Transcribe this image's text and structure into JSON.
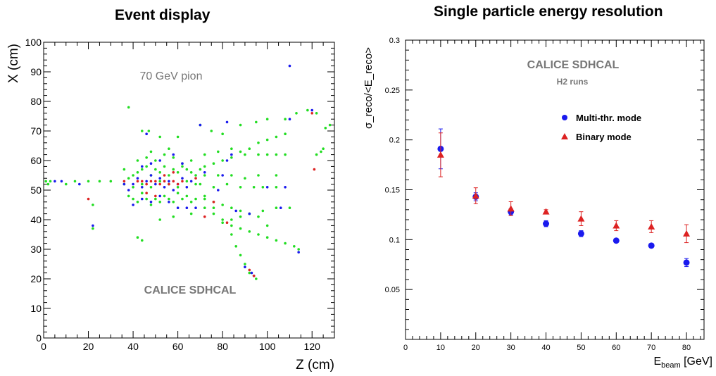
{
  "chart_data": [
    {
      "type": "scatter",
      "title": "Event display",
      "xlabel": "Z (cm)",
      "ylabel": "X (cm)",
      "xlim": [
        0,
        130
      ],
      "ylim": [
        0,
        100
      ],
      "xticks": [
        0,
        20,
        40,
        60,
        80,
        100,
        120
      ],
      "yticks": [
        0,
        10,
        20,
        30,
        40,
        50,
        60,
        70,
        80,
        90,
        100
      ],
      "annotations": [
        "70 GeV pion",
        "CALICE SDHCAL"
      ],
      "colors": {
        "green": "#22dd22",
        "blue": "#1a1aee",
        "red": "#dd2222"
      },
      "series": [
        {
          "color": "green",
          "points": [
            [
              1,
              53
            ],
            [
              2,
              52
            ],
            [
              3,
              53
            ],
            [
              10,
              52
            ],
            [
              14,
              53
            ],
            [
              20,
              53
            ],
            [
              25,
              53
            ],
            [
              30,
              53
            ],
            [
              36,
              52
            ],
            [
              38,
              54
            ],
            [
              40,
              55
            ],
            [
              42,
              56
            ],
            [
              44,
              57
            ],
            [
              46,
              58
            ],
            [
              48,
              55
            ],
            [
              50,
              57
            ],
            [
              52,
              56
            ],
            [
              54,
              58
            ],
            [
              56,
              55
            ],
            [
              58,
              57
            ],
            [
              60,
              56
            ],
            [
              62,
              58
            ],
            [
              64,
              57
            ],
            [
              66,
              56
            ],
            [
              68,
              55
            ],
            [
              70,
              57
            ],
            [
              38,
              48
            ],
            [
              40,
              47
            ],
            [
              42,
              46
            ],
            [
              44,
              49
            ],
            [
              46,
              47
            ],
            [
              48,
              45
            ],
            [
              50,
              47
            ],
            [
              52,
              46
            ],
            [
              54,
              48
            ],
            [
              56,
              47
            ],
            [
              58,
              46
            ],
            [
              60,
              49
            ],
            [
              62,
              47
            ],
            [
              64,
              48
            ],
            [
              66,
              46
            ],
            [
              68,
              47
            ],
            [
              42,
              60
            ],
            [
              46,
              61
            ],
            [
              50,
              60
            ],
            [
              54,
              62
            ],
            [
              58,
              61
            ],
            [
              62,
              59
            ],
            [
              66,
              60
            ],
            [
              48,
              63
            ],
            [
              56,
              64
            ],
            [
              40,
              51
            ],
            [
              44,
              52
            ],
            [
              48,
              51
            ],
            [
              52,
              53
            ],
            [
              56,
              52
            ],
            [
              60,
              51
            ],
            [
              64,
              53
            ],
            [
              68,
              52
            ],
            [
              36,
              57
            ],
            [
              38,
              78
            ],
            [
              44,
              70
            ],
            [
              47,
              70
            ],
            [
              52,
              68
            ],
            [
              60,
              68
            ],
            [
              70,
              72
            ],
            [
              75,
              70
            ],
            [
              80,
              69
            ],
            [
              88,
              72
            ],
            [
              95,
              73
            ],
            [
              100,
              74
            ],
            [
              108,
              74
            ],
            [
              113,
              76
            ],
            [
              118,
              77
            ],
            [
              122,
              76
            ],
            [
              126,
              71
            ],
            [
              128,
              72
            ],
            [
              72,
              58
            ],
            [
              76,
              59
            ],
            [
              80,
              60
            ],
            [
              84,
              61
            ],
            [
              88,
              63
            ],
            [
              92,
              64
            ],
            [
              96,
              66
            ],
            [
              100,
              67
            ],
            [
              104,
              68
            ],
            [
              108,
              69
            ],
            [
              72,
              62
            ],
            [
              78,
              63
            ],
            [
              84,
              64
            ],
            [
              90,
              62
            ],
            [
              96,
              62
            ],
            [
              100,
              62
            ],
            [
              104,
              62
            ],
            [
              108,
              62
            ],
            [
              72,
              55
            ],
            [
              78,
              55
            ],
            [
              84,
              55
            ],
            [
              90,
              54
            ],
            [
              96,
              55
            ],
            [
              104,
              55
            ],
            [
              70,
              52
            ],
            [
              76,
              51
            ],
            [
              82,
              52
            ],
            [
              88,
              51
            ],
            [
              94,
              51
            ],
            [
              98,
              51
            ],
            [
              104,
              51
            ],
            [
              72,
              47
            ],
            [
              76,
              46
            ],
            [
              80,
              45
            ],
            [
              84,
              44
            ],
            [
              88,
              43
            ],
            [
              92,
              42
            ],
            [
              96,
              41
            ],
            [
              72,
              44
            ],
            [
              76,
              42
            ],
            [
              80,
              40
            ],
            [
              84,
              38
            ],
            [
              88,
              37
            ],
            [
              92,
              36
            ],
            [
              96,
              35
            ],
            [
              100,
              34
            ],
            [
              104,
              33
            ],
            [
              108,
              32
            ],
            [
              112,
              31
            ],
            [
              114,
              30
            ],
            [
              72,
              48
            ],
            [
              76,
              44
            ],
            [
              80,
              39
            ],
            [
              84,
              35
            ],
            [
              86,
              31
            ],
            [
              88,
              28
            ],
            [
              90,
              25
            ],
            [
              92,
              22
            ],
            [
              94,
              21
            ],
            [
              95,
              20
            ],
            [
              84,
              40
            ],
            [
              88,
              41
            ],
            [
              92,
              42
            ],
            [
              98,
              43
            ],
            [
              104,
              44
            ],
            [
              110,
              44
            ],
            [
              22,
              37
            ],
            [
              22,
              45
            ],
            [
              42,
              34
            ],
            [
              44,
              33
            ],
            [
              122,
              62
            ],
            [
              124,
              63
            ],
            [
              125,
              64
            ],
            [
              100,
              38
            ],
            [
              52,
              40
            ],
            [
              58,
              41
            ],
            [
              66,
              42
            ]
          ]
        },
        {
          "color": "blue",
          "points": [
            [
              5,
              53
            ],
            [
              8,
              53
            ],
            [
              16,
              52
            ],
            [
              36,
              52
            ],
            [
              38,
              50
            ],
            [
              40,
              52
            ],
            [
              42,
              54
            ],
            [
              44,
              51
            ],
            [
              46,
              53
            ],
            [
              48,
              55
            ],
            [
              50,
              52
            ],
            [
              52,
              54
            ],
            [
              54,
              51
            ],
            [
              56,
              53
            ],
            [
              58,
              50
            ],
            [
              60,
              52
            ],
            [
              62,
              54
            ],
            [
              64,
              51
            ],
            [
              66,
              53
            ],
            [
              40,
              45
            ],
            [
              44,
              47
            ],
            [
              48,
              46
            ],
            [
              52,
              48
            ],
            [
              56,
              46
            ],
            [
              60,
              44
            ],
            [
              64,
              44
            ],
            [
              44,
              58
            ],
            [
              48,
              59
            ],
            [
              52,
              60
            ],
            [
              58,
              62
            ],
            [
              62,
              59
            ],
            [
              46,
              69
            ],
            [
              70,
              72
            ],
            [
              82,
              73
            ],
            [
              110,
              92
            ],
            [
              110,
              74
            ],
            [
              120,
              77
            ],
            [
              114,
              29
            ],
            [
              90,
              24
            ],
            [
              93,
              22
            ],
            [
              94,
              21
            ],
            [
              108,
              51
            ],
            [
              106,
              44
            ],
            [
              100,
              51
            ],
            [
              82,
              60
            ],
            [
              84,
              62
            ],
            [
              86,
              43
            ],
            [
              92,
              42
            ],
            [
              72,
              56
            ],
            [
              80,
              55
            ],
            [
              78,
              50
            ],
            [
              22,
              38
            ],
            [
              68,
              44
            ]
          ]
        },
        {
          "color": "red",
          "points": [
            [
              20,
              47
            ],
            [
              36,
              53
            ],
            [
              42,
              53
            ],
            [
              44,
              53
            ],
            [
              46,
              52
            ],
            [
              48,
              53
            ],
            [
              50,
              53
            ],
            [
              52,
              52
            ],
            [
              54,
              53
            ],
            [
              56,
              52
            ],
            [
              58,
              53
            ],
            [
              60,
              52
            ],
            [
              62,
              53
            ],
            [
              46,
              49
            ],
            [
              50,
              48
            ],
            [
              54,
              55
            ],
            [
              58,
              56
            ],
            [
              72,
              41
            ],
            [
              82,
              39
            ],
            [
              92,
              23
            ],
            [
              94,
              21
            ],
            [
              121,
              57
            ],
            [
              120,
              76
            ],
            [
              76,
              46
            ],
            [
              68,
              54
            ]
          ]
        }
      ]
    },
    {
      "type": "scatter",
      "title": "Single particle energy resolution",
      "xlabel": "E_beam [GeV]",
      "ylabel": "σ_reco/<E_reco>",
      "xlim": [
        0,
        85
      ],
      "ylim": [
        0,
        0.3
      ],
      "xticks": [
        0,
        10,
        20,
        30,
        40,
        50,
        60,
        70,
        80
      ],
      "yticks": [
        0.05,
        0.1,
        0.15,
        0.2,
        0.25,
        0.3
      ],
      "annotations": [
        "CALICE SDHCAL",
        "H2 runs"
      ],
      "colors": {
        "multi": "#1a1aee",
        "binary": "#dd2222"
      },
      "legend": {
        "position": "top-right"
      },
      "series": [
        {
          "name": "Multi-thr. mode",
          "marker": "circle",
          "color": "multi",
          "x": [
            10,
            20,
            30,
            40,
            50,
            60,
            70,
            80
          ],
          "y": [
            0.191,
            0.143,
            0.128,
            0.116,
            0.106,
            0.099,
            0.094,
            0.077
          ],
          "err": [
            0.02,
            0.004,
            0.003,
            0.003,
            0.003,
            0.002,
            0.002,
            0.004
          ]
        },
        {
          "name": "Binary mode",
          "marker": "triangle",
          "color": "binary",
          "x": [
            10,
            20,
            30,
            40,
            50,
            60,
            70,
            80
          ],
          "y": [
            0.185,
            0.144,
            0.131,
            0.128,
            0.121,
            0.114,
            0.113,
            0.106
          ],
          "err": [
            0.022,
            0.008,
            0.007,
            0.002,
            0.007,
            0.005,
            0.006,
            0.009
          ]
        }
      ]
    }
  ]
}
